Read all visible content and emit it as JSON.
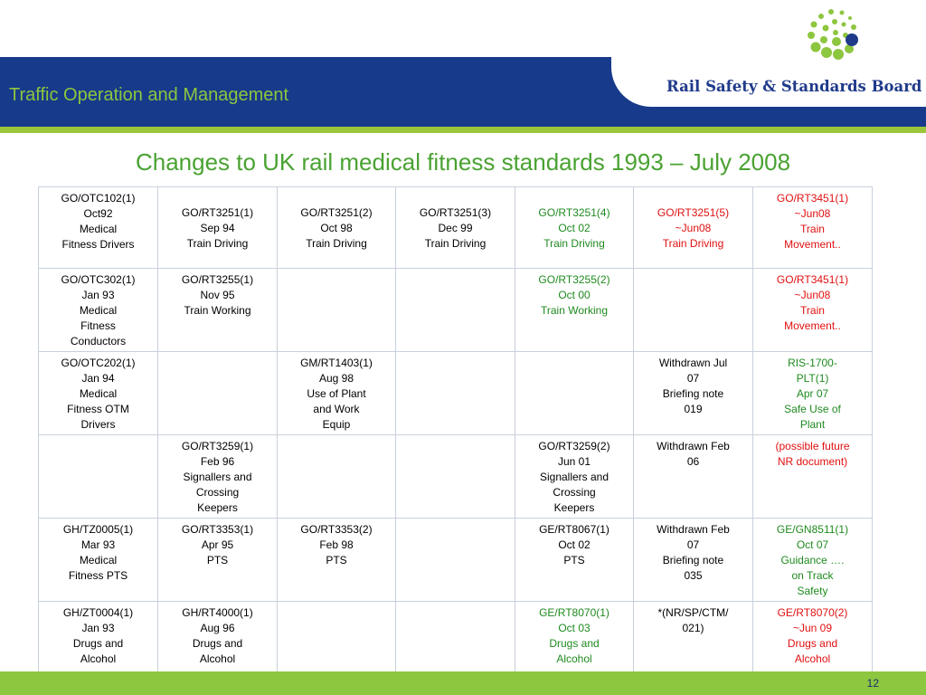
{
  "header": {
    "section_title": "Traffic Operation and Management",
    "logo_text": "Rail Safety & Standards Board"
  },
  "slide": {
    "title": "Changes to UK rail medical fitness standards 1993 – July 2008",
    "page_number": "12"
  },
  "colors": {
    "header_blue": "#173a8a",
    "accent_green": "#8dc63f",
    "title_green": "#4aa232",
    "text_green": "#1f8a1f",
    "text_red": "#e01010"
  },
  "table": {
    "rows": [
      [
        {
          "lines": [
            "GO/OTC102(1)",
            "Oct92",
            "Medical",
            "Fitness Drivers"
          ],
          "color": "black"
        },
        {
          "lines": [
            "GO/RT3251(1)",
            "Sep 94",
            "Train Driving"
          ],
          "color": "black",
          "mid": true
        },
        {
          "lines": [
            "GO/RT3251(2)",
            "Oct 98",
            "Train Driving"
          ],
          "color": "black",
          "mid": true
        },
        {
          "lines": [
            "GO/RT3251(3)",
            "Dec 99",
            "Train Driving"
          ],
          "color": "black",
          "mid": true
        },
        {
          "lines": [
            "GO/RT3251(4)",
            "Oct 02",
            "Train Driving"
          ],
          "color": "green",
          "mid": true
        },
        {
          "lines": [
            "GO/RT3251(5)",
            "~Jun08",
            "Train Driving"
          ],
          "color": "red",
          "mid": true
        },
        {
          "lines": [
            "GO/RT3451(1)",
            "~Jun08",
            "Train",
            "Movement.."
          ],
          "color": "red"
        }
      ],
      [
        {
          "lines": [
            "GO/OTC302(1)",
            "Jan 93",
            "Medical",
            "Fitness",
            "Conductors"
          ],
          "color": "black"
        },
        {
          "lines": [
            "GO/RT3255(1)",
            "Nov 95",
            "Train Working"
          ],
          "color": "black"
        },
        {
          "lines": [],
          "color": "black"
        },
        {
          "lines": [],
          "color": "black"
        },
        {
          "lines": [
            "GO/RT3255(2)",
            "Oct 00",
            "Train Working"
          ],
          "color": "green"
        },
        {
          "lines": [],
          "color": "black"
        },
        {
          "lines": [
            "GO/RT3451(1)",
            "~Jun08",
            "Train",
            "Movement.."
          ],
          "color": "red"
        }
      ],
      [
        {
          "lines": [
            "GO/OTC202(1)",
            "Jan 94",
            "Medical",
            "Fitness OTM",
            "Drivers"
          ],
          "color": "black"
        },
        {
          "lines": [],
          "color": "black"
        },
        {
          "lines": [
            "GM/RT1403(1)",
            "Aug 98",
            "Use of Plant",
            "and Work",
            "Equip"
          ],
          "color": "black"
        },
        {
          "lines": [],
          "color": "black"
        },
        {
          "lines": [],
          "color": "black"
        },
        {
          "lines": [
            "Withdrawn Jul",
            "07",
            "Briefing note",
            "019"
          ],
          "color": "black"
        },
        {
          "lines": [
            "RIS-1700-",
            "PLT(1)",
            "Apr 07",
            "Safe Use of",
            "Plant"
          ],
          "color": "green"
        }
      ],
      [
        {
          "lines": [],
          "color": "black"
        },
        {
          "lines": [
            "GO/RT3259(1)",
            "Feb 96",
            "Signallers and",
            "Crossing",
            "Keepers"
          ],
          "color": "black"
        },
        {
          "lines": [],
          "color": "black"
        },
        {
          "lines": [],
          "color": "black"
        },
        {
          "lines": [
            "GO/RT3259(2)",
            "Jun 01",
            "Signallers and",
            "Crossing",
            "Keepers"
          ],
          "color": "black"
        },
        {
          "lines": [
            "Withdrawn Feb",
            "06"
          ],
          "color": "black"
        },
        {
          "lines": [
            "(possible future",
            "NR document)"
          ],
          "color": "red"
        }
      ],
      [
        {
          "lines": [
            "GH/TZ0005(1)",
            "Mar 93",
            "Medical",
            "Fitness PTS"
          ],
          "color": "black"
        },
        {
          "lines": [
            "GO/RT3353(1)",
            "Apr 95",
            "PTS"
          ],
          "color": "black"
        },
        {
          "lines": [
            "GO/RT3353(2)",
            "Feb 98",
            "PTS"
          ],
          "color": "black"
        },
        {
          "lines": [],
          "color": "black"
        },
        {
          "lines": [
            "GE/RT8067(1)",
            "Oct 02",
            "PTS"
          ],
          "color": "black"
        },
        {
          "lines": [
            "Withdrawn Feb",
            "07",
            "Briefing note",
            "035"
          ],
          "color": "black"
        },
        {
          "lines": [
            "GE/GN8511(1)",
            "Oct 07",
            "Guidance ….",
            "on Track",
            "Safety"
          ],
          "color": "green"
        }
      ],
      [
        {
          "lines": [
            "GH/ZT0004(1)",
            "Jan 93",
            "Drugs and",
            "Alcohol"
          ],
          "color": "black"
        },
        {
          "lines": [
            "GH/RT4000(1)",
            "Aug 96",
            "Drugs and",
            "Alcohol"
          ],
          "color": "black"
        },
        {
          "lines": [],
          "color": "black"
        },
        {
          "lines": [],
          "color": "black"
        },
        {
          "lines": [
            "GE/RT8070(1)",
            "Oct 03",
            "Drugs and",
            "Alcohol"
          ],
          "color": "green"
        },
        {
          "lines": [
            "*(NR/SP/CTM/",
            "021)"
          ],
          "color": "black"
        },
        {
          "lines": [
            "GE/RT8070(2)",
            "~Jun 09",
            "Drugs and",
            "Alcohol"
          ],
          "color": "red"
        }
      ]
    ]
  }
}
